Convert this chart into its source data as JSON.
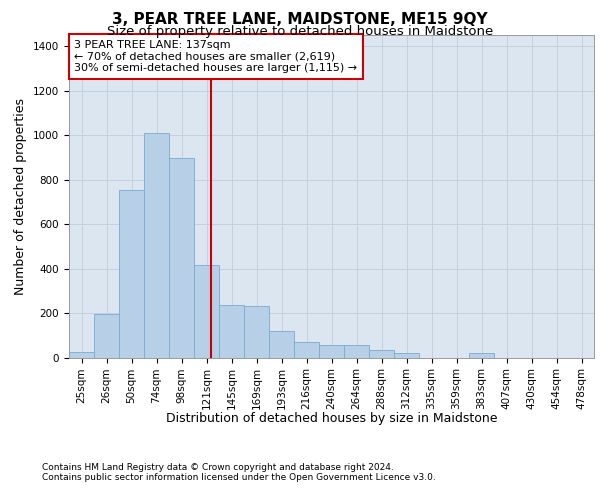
{
  "title": "3, PEAR TREE LANE, MAIDSTONE, ME15 9QY",
  "subtitle": "Size of property relative to detached houses in Maidstone",
  "xlabel": "Distribution of detached houses by size in Maidstone",
  "ylabel": "Number of detached properties",
  "footer1": "Contains HM Land Registry data © Crown copyright and database right 2024.",
  "footer2": "Contains public sector information licensed under the Open Government Licence v3.0.",
  "annotation_line1": "3 PEAR TREE LANE: 137sqm",
  "annotation_line2": "← 70% of detached houses are smaller (2,619)",
  "annotation_line3": "30% of semi-detached houses are larger (1,115) →",
  "bar_color": "#b8cfe8",
  "bar_edge_color": "#7aaad0",
  "vline_color": "#cc0000",
  "vline_x_idx": 5,
  "background_color": "#dce6f0",
  "tick_labels": [
    "25sqm",
    "26sqm",
    "50sqm",
    "74sqm",
    "98sqm",
    "121sqm",
    "145sqm",
    "169sqm",
    "193sqm",
    "216sqm",
    "240sqm",
    "264sqm",
    "288sqm",
    "312sqm",
    "335sqm",
    "359sqm",
    "383sqm",
    "407sqm",
    "430sqm",
    "454sqm",
    "478sqm"
  ],
  "values": [
    25,
    195,
    755,
    1010,
    895,
    415,
    235,
    230,
    120,
    70,
    55,
    55,
    35,
    20,
    0,
    0,
    20,
    0,
    0,
    0,
    0
  ],
  "ylim": [
    0,
    1450
  ],
  "yticks": [
    0,
    200,
    400,
    600,
    800,
    1000,
    1200,
    1400
  ],
  "grid_color": "#c5d0de",
  "title_fontsize": 11,
  "subtitle_fontsize": 9.5,
  "ylabel_fontsize": 9,
  "xlabel_fontsize": 9,
  "tick_fontsize": 7.5,
  "footer_fontsize": 6.5,
  "annot_fontsize": 8
}
